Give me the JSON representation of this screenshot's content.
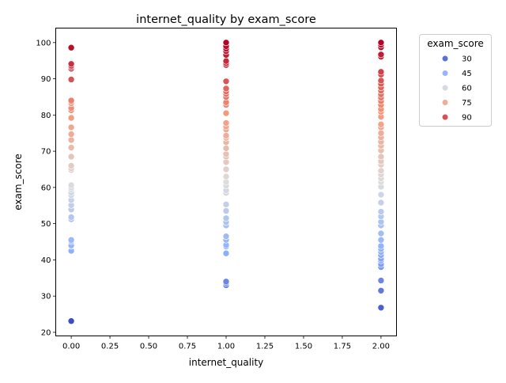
{
  "chart_data": {
    "type": "scatter",
    "title": "internet_quality by exam_score",
    "xlabel": "internet_quality",
    "ylabel": "exam_score",
    "xlim": [
      -0.1,
      2.1
    ],
    "ylim": [
      19,
      104
    ],
    "xticks": [
      "0.00",
      "0.25",
      "0.50",
      "0.75",
      "1.00",
      "1.25",
      "1.50",
      "1.75",
      "2.00"
    ],
    "xtick_values": [
      0,
      0.25,
      0.5,
      0.75,
      1.0,
      1.25,
      1.5,
      1.75,
      2.0
    ],
    "yticks": [
      "20",
      "30",
      "40",
      "50",
      "60",
      "70",
      "80",
      "90",
      "100"
    ],
    "ytick_values": [
      20,
      30,
      40,
      50,
      60,
      70,
      80,
      90,
      100
    ],
    "grid": false,
    "colormap": "coolwarm",
    "color_by": "exam_score",
    "color_range": [
      23,
      100
    ],
    "legend": {
      "title": "exam_score",
      "placement": "outside-right",
      "entries": [
        {
          "label": "30",
          "value": 30
        },
        {
          "label": "45",
          "value": 45
        },
        {
          "label": "60",
          "value": 60
        },
        {
          "label": "75",
          "value": 75
        },
        {
          "label": "90",
          "value": 90
        }
      ]
    },
    "series": [
      {
        "x": 0,
        "values": [
          23.1,
          42.5,
          43.8,
          44.0,
          45.1,
          45.5,
          51.2,
          51.8,
          53.9,
          55.1,
          56.5,
          57.9,
          58.6,
          59.5,
          60.0,
          60.6,
          64.8,
          65.3,
          66.0,
          68.5,
          71.0,
          73.1,
          74.7,
          76.6,
          79.2,
          81.3,
          81.9,
          83.2,
          83.6,
          84.0,
          89.8,
          92.8,
          93.3,
          93.6,
          94.1,
          98.6
        ]
      },
      {
        "x": 1,
        "values": [
          33.0,
          33.6,
          34.0,
          41.8,
          43.7,
          44.1,
          45.5,
          46.5,
          49.5,
          50.4,
          51.5,
          53.5,
          55.3,
          58.5,
          59.2,
          60.5,
          61.5,
          63.0,
          65.0,
          67.0,
          68.5,
          69.2,
          70.8,
          72.5,
          73.7,
          74.3,
          76.0,
          76.8,
          77.8,
          80.5,
          82.8,
          83.5,
          85.0,
          85.8,
          86.5,
          87.3,
          89.3,
          93.8,
          94.3,
          94.9,
          96.6,
          97.6,
          98.3,
          99.0,
          100.0
        ]
      },
      {
        "x": 2,
        "values": [
          26.8,
          31.5,
          34.3,
          38.0,
          38.8,
          39.8,
          40.3,
          41.3,
          42.2,
          43.0,
          43.8,
          45.5,
          47.3,
          49.5,
          50.5,
          52.0,
          53.3,
          55.8,
          58.0,
          60.2,
          61.5,
          62.5,
          63.6,
          64.6,
          66.3,
          67.2,
          68.5,
          70.2,
          71.5,
          72.6,
          73.8,
          75.0,
          76.6,
          77.4,
          79.5,
          80.9,
          81.6,
          82.8,
          83.8,
          84.8,
          85.7,
          86.7,
          87.6,
          88.6,
          89.5,
          91.2,
          91.9,
          96.1,
          96.7,
          98.7,
          99.4,
          100.0
        ]
      }
    ]
  }
}
